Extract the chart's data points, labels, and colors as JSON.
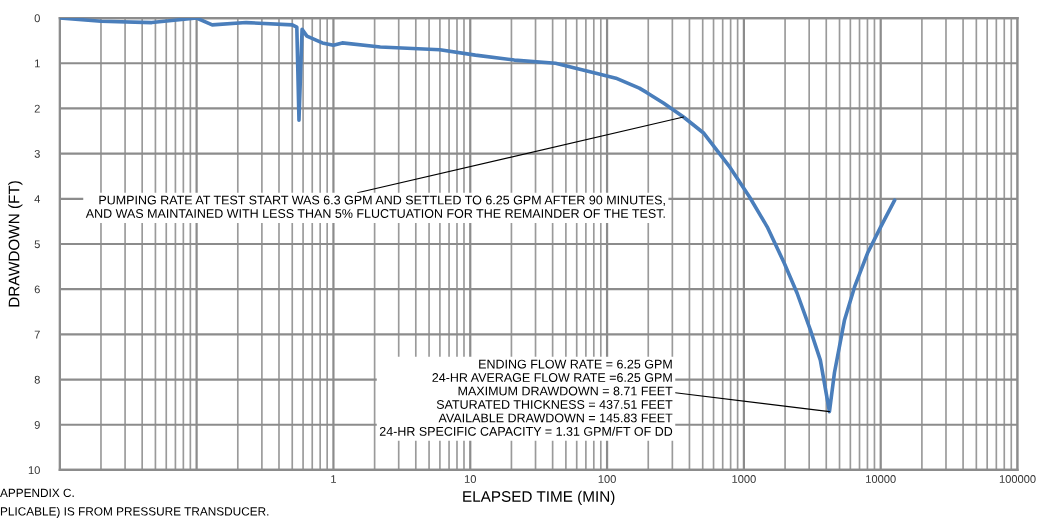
{
  "chart_data": {
    "type": "line",
    "xlabel": "ELAPSED TIME (MIN)",
    "ylabel": "DRAWDOWN (FT)",
    "log": "x",
    "grid": true,
    "marker": "none",
    "line_style": "solid",
    "xlim": [
      0.01,
      100000
    ],
    "xticks": [
      {
        "value": 0.01,
        "label": null
      },
      {
        "value": 0.1,
        "label": null
      },
      1,
      10,
      100,
      1000,
      10000,
      100000
    ],
    "ylim": [
      10,
      0
    ],
    "yticks": [
      0,
      1,
      2,
      3,
      4,
      5,
      6,
      7,
      8,
      9,
      10
    ],
    "series": [
      {
        "color": "#4a7ebb",
        "x": [
          0.01,
          0.02,
          0.047,
          0.1,
          0.13,
          0.23,
          0.5,
          0.54,
          0.56,
          0.59,
          0.64,
          0.83,
          1,
          1.16,
          2.2,
          6,
          10.9,
          21,
          42,
          83,
          116,
          172,
          193,
          258,
          362,
          510,
          790,
          1100,
          1480,
          1970,
          2450,
          3060,
          3620,
          4220,
          4590,
          5440,
          6440,
          8020,
          10000,
          12650
        ],
        "values": [
          0.0,
          0.07,
          0.1,
          0.0,
          0.15,
          0.1,
          0.15,
          0.2,
          2.26,
          0.25,
          0.4,
          0.55,
          0.6,
          0.55,
          0.64,
          0.7,
          0.82,
          0.93,
          1.0,
          1.22,
          1.33,
          1.55,
          1.64,
          1.88,
          2.19,
          2.55,
          3.3,
          3.96,
          4.62,
          5.42,
          6.09,
          6.9,
          7.57,
          8.71,
          7.85,
          6.68,
          5.95,
          5.2,
          4.62,
          4.03
        ]
      }
    ],
    "annotations": [
      {
        "text": "PUMPING RATE AT TEST START WAS 6.3 GPM AND SETTLED TO 6.25 GPM AFTER 90 MINUTES,\nAND WAS MAINTAINED WITH LESS THAN 5% FLUCTUATION FOR THE REMAINDER OF THE TEST.",
        "x": 362,
        "y": 2.19
      },
      {
        "text": "ENDING FLOW RATE = 6.25 GPM\n24-HR AVERAGE FLOW RATE =6.25 GPM\nMAXIMUM DRAWDOWN = 8.71 FEET\nSATURATED THICKNESS = 437.51 FEET\nAVAILABLE DRAWDOWN = 145.83 FEET\n24-HR SPECIFIC CAPACITY = 1.31 GPM/FT OF DD",
        "x": 4220,
        "y": 8.71
      },
      "APPENDIX C.",
      "PLICABLE) IS FROM PRESSURE TRANSDUCER."
    ]
  }
}
